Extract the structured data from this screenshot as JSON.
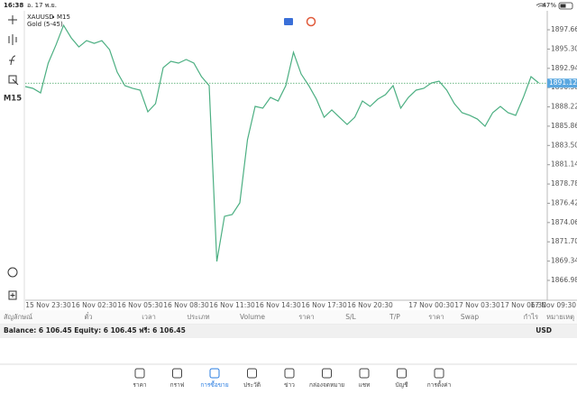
{
  "status_bar": {
    "time": "16:38",
    "date": "อ. 17 พ.ย.",
    "battery": "47%"
  },
  "chart_data": {
    "type": "line",
    "symbol": "XAUUSD",
    "timeframe": "M15",
    "indicator": "Gold (5-45)",
    "categories": [
      null,
      null,
      null,
      "15 Nov 23:30",
      null,
      null,
      null,
      null,
      null,
      "16 Nov 02:30",
      null,
      null,
      null,
      null,
      null,
      "16 Nov 05:30",
      null,
      null,
      null,
      null,
      null,
      "16 Nov 08:30",
      null,
      null,
      null,
      null,
      null,
      "16 Nov 11:30",
      null,
      null,
      null,
      null,
      null,
      "16 Nov 14:30",
      null,
      null,
      null,
      null,
      null,
      "16 Nov 17:30",
      null,
      null,
      null,
      null,
      null,
      "16 Nov 20:30",
      null,
      null,
      null,
      null,
      null,
      null,
      null,
      "17 Nov 00:30",
      null,
      null,
      null,
      null,
      null,
      "17 Nov 03:30",
      null,
      null,
      null,
      null,
      null,
      "17 Nov 06:30",
      null,
      null,
      null,
      null,
      null,
      "17 Nov 09:30"
    ],
    "values": [
      1890.71,
      1890.49,
      1889.93,
      1893.58,
      1895.78,
      1898.21,
      1896.67,
      1895.56,
      1896.33,
      1896.0,
      1896.33,
      1895.23,
      1892.47,
      1890.82,
      1890.49,
      1890.27,
      1887.62,
      1888.61,
      1893.02,
      1893.8,
      1893.58,
      1894.02,
      1893.58,
      1891.92,
      1890.82,
      1869.3,
      1874.82,
      1875.04,
      1876.47,
      1884.2,
      1888.28,
      1888.06,
      1889.38,
      1888.94,
      1890.82,
      1894.9,
      1892.25,
      1890.82,
      1889.16,
      1886.95,
      1887.84,
      1886.95,
      1886.07,
      1886.95,
      1888.94,
      1888.28,
      1889.16,
      1889.71,
      1890.82,
      1888.06,
      1889.38,
      1890.27,
      1890.49,
      1891.15,
      1891.37,
      1890.27,
      1888.61,
      1887.51,
      1887.18,
      1886.73,
      1885.85,
      1887.51,
      1888.28,
      1887.51,
      1887.18,
      1889.38,
      1891.92,
      1891.15,
      null,
      null,
      null,
      null
    ],
    "color": "#4caf82",
    "ylim": [
      1864.55,
      1899.76
    ],
    "yticks": [
      {
        "value": 1897.66,
        "label": "1897.660"
      },
      {
        "value": 1895.3,
        "label": "1895.300"
      },
      {
        "value": 1892.94,
        "label": "1892.940"
      },
      {
        "value": 1890.58,
        "label": "1890.580"
      },
      {
        "value": 1888.22,
        "label": "1888.220"
      },
      {
        "value": 1885.86,
        "label": "1885.860"
      },
      {
        "value": 1883.5,
        "label": "1883.500"
      },
      {
        "value": 1881.14,
        "label": "1881.140"
      },
      {
        "value": 1878.78,
        "label": "1878.780"
      },
      {
        "value": 1876.42,
        "label": "1876.420"
      },
      {
        "value": 1874.06,
        "label": "1874.060"
      },
      {
        "value": 1871.7,
        "label": "1871.700"
      },
      {
        "value": 1869.34,
        "label": "1869.340"
      },
      {
        "value": 1866.98,
        "label": "1866.980"
      }
    ],
    "price_line": 1891.125,
    "price_line_color": "#5aa7e0"
  },
  "toolbar": {
    "timeframe": "M15"
  },
  "table": {
    "headers": [
      "สัญลักษณ์",
      "ตั๋ว",
      "เวลา",
      "ประเภท",
      "Volume",
      "ราคา",
      "S/L",
      "T/P",
      "ราคา",
      "Swap",
      "กำไร",
      "หมายเหตุ"
    ]
  },
  "balance": {
    "text": "Balance: 6 106.45 Equity: 6 106.45 ฟรี: 6 106.45",
    "currency": "USD"
  },
  "tabs": [
    "ราคา",
    "กราฟ",
    "การซื้อขาย",
    "ประวัติ",
    "ข่าว",
    "กล่องจดหมาย",
    "แชท",
    "บัญชี",
    "การตั้งค่า"
  ],
  "active_tab": 2
}
